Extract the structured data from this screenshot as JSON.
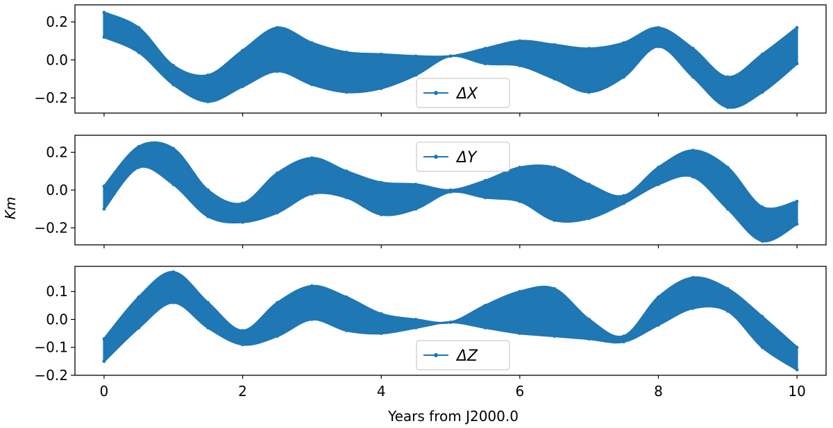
{
  "chart_data": {
    "type": "line",
    "series_color": "#1f77b4",
    "xlabel": "Years from J2000.0",
    "ylabel": "Km",
    "xlim": [
      -0.42,
      10.42
    ],
    "xticks": [
      0,
      2,
      4,
      6,
      8,
      10
    ],
    "x": [
      0,
      0.5,
      1,
      1.5,
      2,
      2.5,
      3,
      3.5,
      4,
      4.5,
      5,
      5.5,
      6,
      6.5,
      7,
      7.5,
      8,
      8.5,
      9,
      9.5,
      10
    ],
    "panels": [
      {
        "legend": "ΔX",
        "legend_loc": "lower center",
        "ylim": [
          -0.28,
          0.29
        ],
        "yticks": [
          -0.2,
          0.0,
          0.2
        ],
        "ytick_labels": [
          "−0.2",
          "0.0",
          "0.2"
        ],
        "upper": [
          0.25,
          0.17,
          -0.03,
          -0.08,
          0.05,
          0.17,
          0.09,
          0.04,
          0.03,
          0.02,
          0.02,
          0.06,
          0.1,
          0.08,
          0.06,
          0.09,
          0.17,
          0.06,
          -0.09,
          0.03,
          0.17
        ],
        "lower": [
          0.12,
          0.04,
          -0.13,
          -0.22,
          -0.14,
          -0.06,
          -0.13,
          -0.17,
          -0.15,
          -0.08,
          0.02,
          -0.02,
          -0.03,
          -0.1,
          -0.17,
          -0.09,
          0.07,
          -0.09,
          -0.25,
          -0.17,
          -0.02
        ]
      },
      {
        "legend": "ΔY",
        "legend_loc": "upper center",
        "ylim": [
          -0.29,
          0.29
        ],
        "yticks": [
          -0.2,
          0.0,
          0.2
        ],
        "ytick_labels": [
          "−0.2",
          "0.0",
          "0.2"
        ],
        "upper": [
          0.02,
          0.23,
          0.22,
          0.0,
          -0.07,
          0.09,
          0.17,
          0.1,
          0.04,
          0.03,
          0.0,
          0.05,
          0.12,
          0.12,
          0.03,
          -0.03,
          0.12,
          0.21,
          0.12,
          -0.09,
          -0.06
        ],
        "lower": [
          -0.1,
          0.12,
          0.03,
          -0.14,
          -0.17,
          -0.12,
          -0.02,
          -0.04,
          -0.13,
          -0.1,
          -0.01,
          -0.04,
          -0.06,
          -0.16,
          -0.15,
          -0.07,
          0.03,
          0.07,
          -0.1,
          -0.27,
          -0.18
        ]
      },
      {
        "legend": "ΔZ",
        "legend_loc": "lower center",
        "ylim": [
          -0.2,
          0.19
        ],
        "yticks": [
          -0.2,
          -0.1,
          0.0,
          0.1
        ],
        "ytick_labels": [
          "−0.2",
          "−0.1",
          "0.0",
          "0.1"
        ],
        "upper": [
          -0.07,
          0.08,
          0.17,
          0.06,
          -0.04,
          0.06,
          0.12,
          0.08,
          0.02,
          0.0,
          -0.01,
          0.05,
          0.1,
          0.11,
          0.0,
          -0.06,
          0.08,
          0.15,
          0.11,
          0.01,
          -0.1
        ],
        "lower": [
          -0.15,
          -0.03,
          0.06,
          -0.03,
          -0.09,
          -0.06,
          0.0,
          -0.04,
          -0.05,
          -0.03,
          -0.01,
          -0.03,
          -0.05,
          -0.06,
          -0.07,
          -0.08,
          -0.02,
          0.04,
          0.03,
          -0.1,
          -0.18
        ]
      }
    ]
  }
}
